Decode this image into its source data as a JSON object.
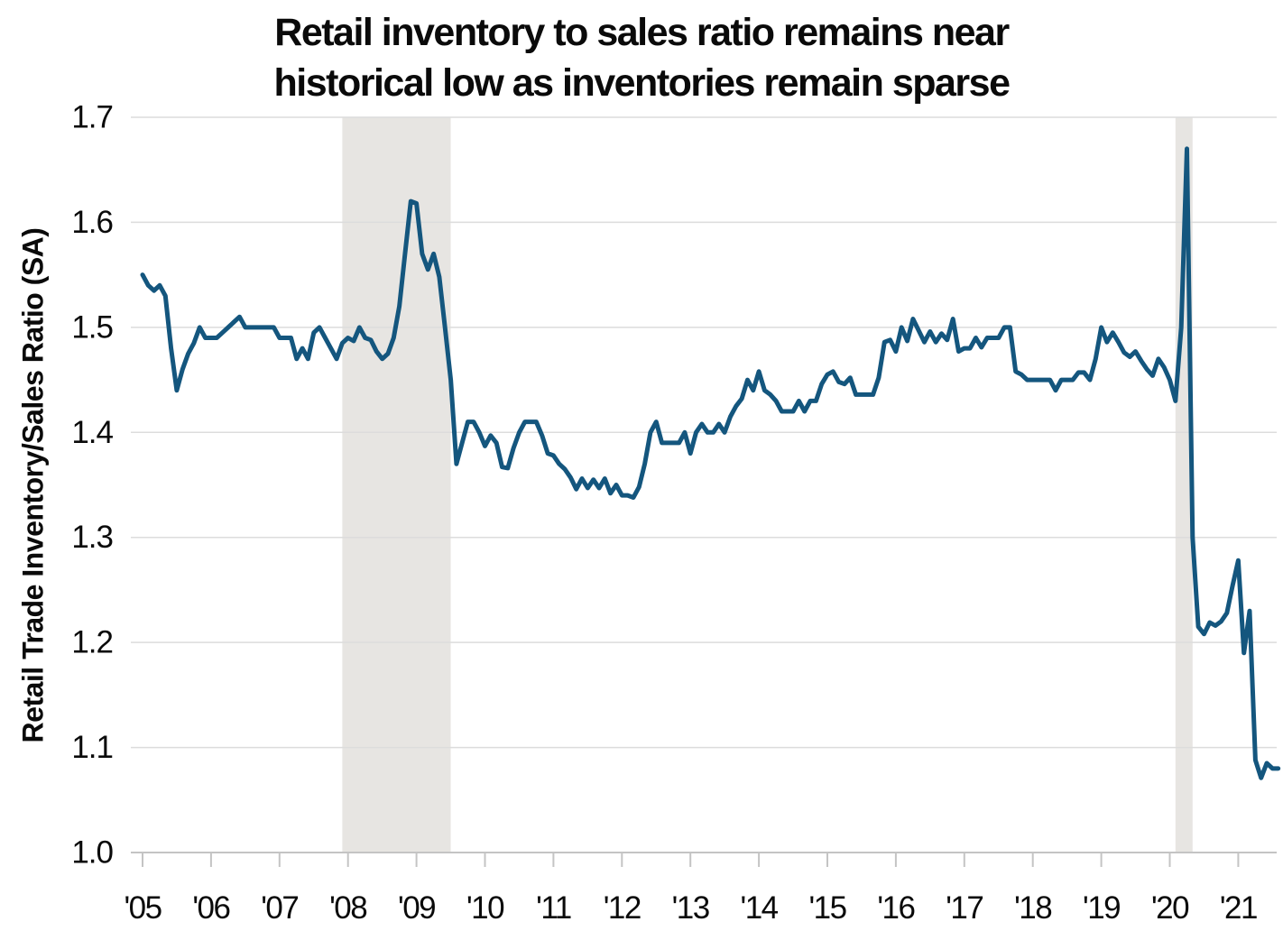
{
  "title": {
    "line1": "Retail inventory to sales ratio remains near",
    "line2": "historical low as inventories remain sparse"
  },
  "y_axis": {
    "label": "Retail Trade Inventory/Sales Ratio (SA)",
    "tick_labels": [
      "1.0",
      "1.1",
      "1.2",
      "1.3",
      "1.4",
      "1.5",
      "1.6",
      "1.7"
    ]
  },
  "x_axis": {
    "tick_labels": [
      "'05",
      "'06",
      "'07",
      "'08",
      "'09",
      "'10",
      "'11",
      "'12",
      "'13",
      "'14",
      "'15",
      "'16",
      "'17",
      "'18",
      "'19",
      "'20",
      "'21"
    ]
  },
  "colors": {
    "line": "#14567e",
    "recession_band": "#e7e5e2",
    "grid": "#dcdcdc",
    "axis": "#c4c4c4",
    "text": "#0a0a0a",
    "background": "#ffffff"
  },
  "chart_data": {
    "type": "line",
    "title": "Retail inventory to sales ratio remains near historical low as inventories remain sparse",
    "xlabel": "",
    "ylabel": "Retail Trade Inventory/Sales Ratio (SA)",
    "ylim": [
      1.0,
      1.7
    ],
    "y_ticks": [
      1.0,
      1.1,
      1.2,
      1.3,
      1.4,
      1.5,
      1.6,
      1.7
    ],
    "x_tick_labels": [
      "'05",
      "'06",
      "'07",
      "'08",
      "'09",
      "'10",
      "'11",
      "'12",
      "'13",
      "'14",
      "'15",
      "'16",
      "'17",
      "'18",
      "'19",
      "'20",
      "'21"
    ],
    "grid": "horizontal",
    "legend": "none",
    "frequency": "monthly",
    "start": "2005-01",
    "end": "2021-08",
    "recession_bands": [
      {
        "from": "2007-12",
        "to": "2009-07"
      },
      {
        "from": "2020-02",
        "to": "2020-05"
      }
    ],
    "series": [
      {
        "name": "Retail Trade Inventory/Sales Ratio (SA)",
        "values": [
          1.55,
          1.54,
          1.535,
          1.54,
          1.53,
          1.48,
          1.44,
          1.46,
          1.475,
          1.485,
          1.5,
          1.49,
          1.49,
          1.49,
          1.495,
          1.5,
          1.505,
          1.51,
          1.5,
          1.5,
          1.5,
          1.5,
          1.5,
          1.5,
          1.49,
          1.49,
          1.49,
          1.47,
          1.48,
          1.47,
          1.495,
          1.5,
          1.49,
          1.48,
          1.47,
          1.485,
          1.49,
          1.487,
          1.5,
          1.49,
          1.488,
          1.477,
          1.47,
          1.475,
          1.49,
          1.52,
          1.57,
          1.62,
          1.618,
          1.57,
          1.555,
          1.57,
          1.548,
          1.5,
          1.45,
          1.37,
          1.39,
          1.41,
          1.41,
          1.4,
          1.387,
          1.397,
          1.39,
          1.367,
          1.366,
          1.385,
          1.4,
          1.41,
          1.41,
          1.41,
          1.397,
          1.38,
          1.378,
          1.37,
          1.365,
          1.357,
          1.346,
          1.356,
          1.347,
          1.355,
          1.347,
          1.356,
          1.342,
          1.35,
          1.34,
          1.34,
          1.338,
          1.348,
          1.37,
          1.4,
          1.41,
          1.39,
          1.39,
          1.39,
          1.39,
          1.4,
          1.38,
          1.4,
          1.408,
          1.4,
          1.4,
          1.408,
          1.4,
          1.415,
          1.425,
          1.432,
          1.45,
          1.44,
          1.458,
          1.44,
          1.436,
          1.43,
          1.42,
          1.42,
          1.42,
          1.43,
          1.42,
          1.43,
          1.43,
          1.446,
          1.455,
          1.458,
          1.448,
          1.446,
          1.452,
          1.436,
          1.436,
          1.436,
          1.436,
          1.452,
          1.486,
          1.488,
          1.477,
          1.5,
          1.487,
          1.508,
          1.497,
          1.486,
          1.496,
          1.486,
          1.494,
          1.488,
          1.508,
          1.477,
          1.48,
          1.48,
          1.49,
          1.481,
          1.49,
          1.49,
          1.49,
          1.5,
          1.5,
          1.458,
          1.455,
          1.45,
          1.45,
          1.45,
          1.45,
          1.45,
          1.44,
          1.45,
          1.45,
          1.45,
          1.457,
          1.457,
          1.45,
          1.47,
          1.5,
          1.486,
          1.495,
          1.486,
          1.476,
          1.472,
          1.477,
          1.468,
          1.46,
          1.454,
          1.47,
          1.462,
          1.45,
          1.43,
          1.5,
          1.67,
          1.3,
          1.215,
          1.208,
          1.219,
          1.216,
          1.22,
          1.228,
          1.254,
          1.278,
          1.19,
          1.23,
          1.088,
          1.071,
          1.085,
          1.08,
          1.08
        ]
      }
    ]
  }
}
